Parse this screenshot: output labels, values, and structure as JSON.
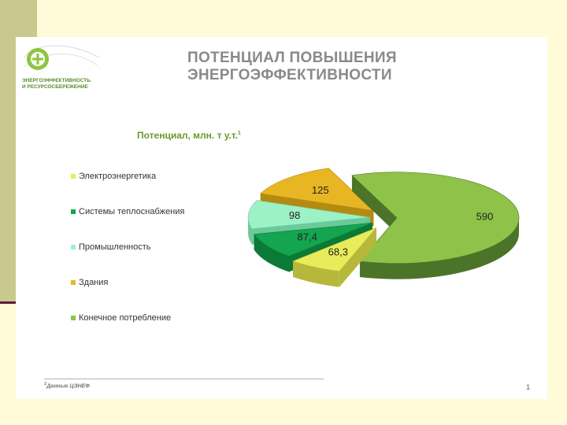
{
  "logo": {
    "line1": "ЭНЕРГОЭФФЕКТИВНОСТЬ",
    "line2": "И РЕСУРСОСБЕРЕЖЕНИЕ"
  },
  "title": {
    "line1": "ПОТЕНЦИАЛ ПОВЫШЕНИЯ",
    "line2": "ЭНЕРГОЭФФЕКТИВНОСТИ"
  },
  "footnote": {
    "mark": "1",
    "text": "Данные ЦЭНЕФ"
  },
  "page_number": "1",
  "colors": {
    "background": "#fffbd9",
    "sidebar": "#c9c98e",
    "accent_line": "#5c1c3c"
  },
  "chart_data": {
    "type": "pie",
    "title": "Потенциал, млн. т у.т.",
    "title_footnote": "1",
    "legend_position": "left",
    "categories": [
      "Электроэнергетика",
      "Системы теплоснабжения",
      "Промышленность",
      "Здания",
      "Конечное потребление"
    ],
    "values": [
      68.3,
      87.4,
      98,
      125,
      590
    ],
    "value_labels": [
      "68,3",
      "87,4",
      "98",
      "125",
      "590"
    ],
    "colors": [
      "#e9ec5a",
      "#13a550",
      "#9df2c5",
      "#e8b523",
      "#8fc248"
    ],
    "side_colors": [
      "#b5b83a",
      "#0b7a37",
      "#6cc99a",
      "#b58a12",
      "#4c7428"
    ],
    "exploded": true,
    "style": "3d"
  }
}
